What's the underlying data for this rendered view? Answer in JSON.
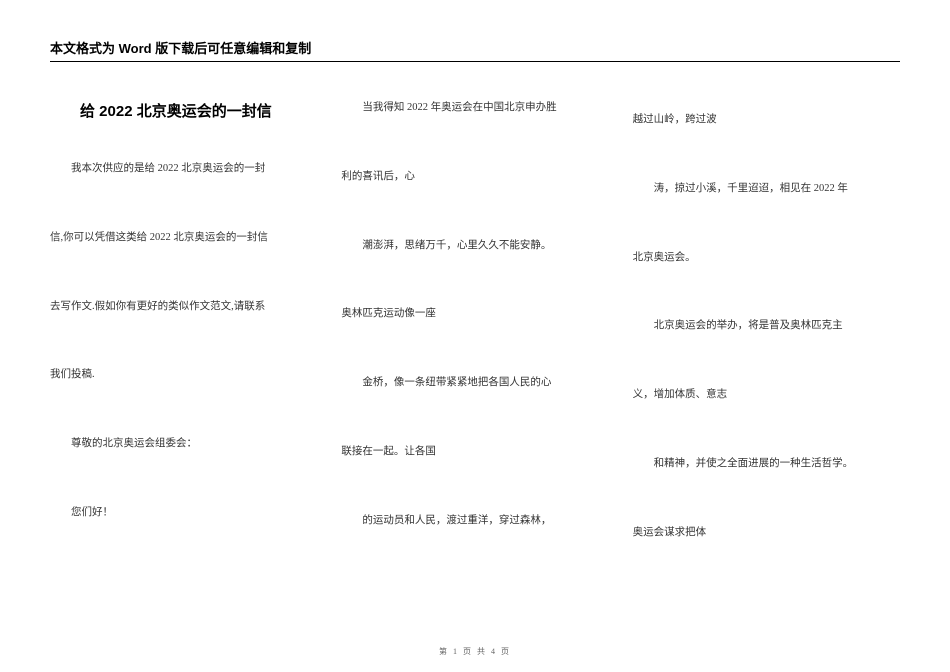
{
  "header": {
    "banner_text": "本文格式为 Word 版下载后可任意编辑和复制"
  },
  "footer": {
    "page_info": "第 1 页 共 4 页"
  },
  "columns": {
    "col1": {
      "title": "给 2022 北京奥运会的一封信",
      "p1": "我本次供应的是给 2022 北京奥运会的一封",
      "p2": "信,你可以凭借这类给 2022 北京奥运会的一封信",
      "p3": "去写作文.假如你有更好的类似作文范文,请联系",
      "p4": "我们投稿.",
      "p5": "尊敬的北京奥运会组委会：",
      "p6": "您们好！"
    },
    "col2": {
      "p1": "当我得知 2022 年奥运会在中国北京申办胜",
      "p2": "利的喜讯后，心",
      "p3": "潮澎湃，思绪万千，心里久久不能安静。",
      "p4": "奥林匹克运动像一座",
      "p5": "金桥，像一条纽带紧紧地把各国人民的心",
      "p6": "联接在一起。让各国",
      "p7": "的运动员和人民，渡过重洋，穿过森林，"
    },
    "col3": {
      "p1": "越过山岭，跨过波",
      "p2": "涛，掠过小溪，千里迢迢，相见在 2022 年",
      "p3": "北京奥运会。",
      "p4": "北京奥运会的举办，将是普及奥林匹克主",
      "p5": "义，增加体质、意志",
      "p6": "和精神，并使之全面进展的一种生活哲学。",
      "p7": "奥运会谋求把体"
    }
  }
}
